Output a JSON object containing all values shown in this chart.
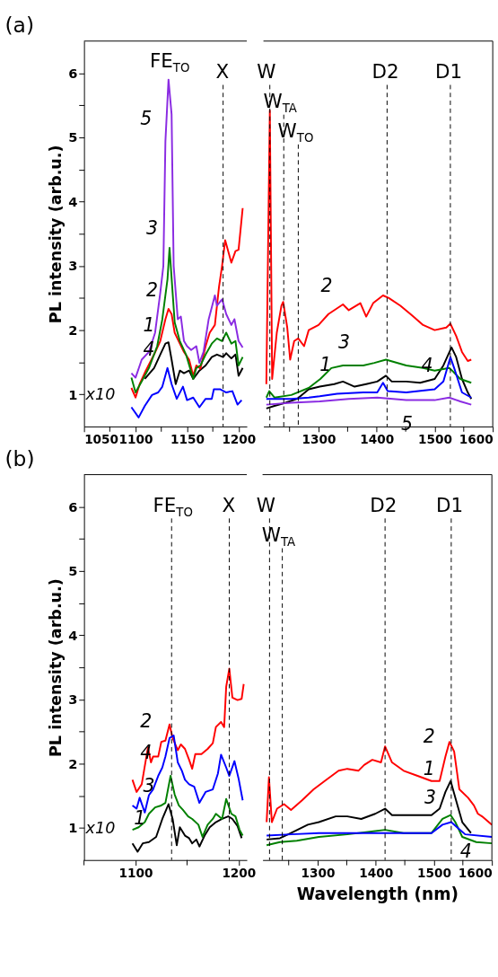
{
  "chart_data": [
    {
      "type": "line",
      "title": "(a)",
      "ylabel": "PL intensity (arb.u.)",
      "xlim": [
        1050,
        1208
      ],
      "ylim": [
        0.5,
        6.5
      ],
      "xticks": [
        1050,
        {
          "value": 1075,
          "label": null
        },
        1100,
        {
          "value": 1125,
          "label": null
        },
        1150,
        {
          "value": 1175,
          "label": null
        },
        1200
      ],
      "yticks": [
        1,
        {
          "value": 1.5,
          "label": null
        },
        2,
        {
          "value": 2.5,
          "label": null
        },
        3,
        {
          "value": 3.5,
          "label": null
        },
        4,
        {
          "value": 4.5,
          "label": null
        },
        5,
        {
          "value": 5.5,
          "label": null
        },
        6
      ],
      "series": [
        {
          "color": "#000000",
          "x": [
            1109,
            1118,
            1124,
            1129,
            1132,
            1135,
            1139,
            1143,
            1147,
            1152,
            1156,
            1162,
            1168,
            1174,
            1179,
            1185,
            1188,
            1193,
            1197,
            1200,
            1204
          ],
          "values": [
            1.24,
            1.41,
            1.62,
            1.79,
            1.81,
            1.54,
            1.16,
            1.37,
            1.33,
            1.37,
            1.24,
            1.37,
            1.45,
            1.58,
            1.62,
            1.58,
            1.64,
            1.56,
            1.62,
            1.29,
            1.41
          ]
        },
        {
          "color": "#ff0000",
          "x": [
            1096,
            1100,
            1104,
            1110,
            1118,
            1124,
            1129,
            1132,
            1135,
            1138,
            1143,
            1147,
            1152,
            1156,
            1159,
            1163,
            1168,
            1172,
            1177,
            1181,
            1184,
            1187,
            1193,
            1197,
            1200,
            1204
          ],
          "values": [
            1.1,
            0.95,
            1.16,
            1.37,
            1.62,
            1.83,
            2.17,
            2.33,
            2.25,
            1.96,
            1.79,
            1.66,
            1.54,
            1.29,
            1.45,
            1.4,
            1.75,
            1.96,
            2.08,
            2.67,
            3.0,
            3.4,
            3.05,
            3.23,
            3.25,
            3.9
          ]
        },
        {
          "color": "#008000",
          "x": [
            1096,
            1100,
            1106,
            1113,
            1121,
            1126,
            1131,
            1133,
            1136,
            1138,
            1143,
            1149,
            1156,
            1159,
            1163,
            1168,
            1174,
            1179,
            1184,
            1188,
            1193,
            1197,
            1200,
            1204
          ],
          "values": [
            1.26,
            1.03,
            1.2,
            1.41,
            1.75,
            2.17,
            2.79,
            3.28,
            2.58,
            2.12,
            1.83,
            1.62,
            1.24,
            1.41,
            1.45,
            1.62,
            1.79,
            1.87,
            1.83,
            1.96,
            1.79,
            1.83,
            1.45,
            1.58
          ]
        },
        {
          "color": "#0000ff",
          "x": [
            1096,
            1103,
            1109,
            1116,
            1122,
            1126,
            1131,
            1135,
            1140,
            1146,
            1150,
            1156,
            1162,
            1168,
            1174,
            1176,
            1182,
            1188,
            1194,
            1199,
            1203
          ],
          "values": [
            0.8,
            0.64,
            0.82,
            0.99,
            1.03,
            1.12,
            1.41,
            1.16,
            0.93,
            1.12,
            0.91,
            0.95,
            0.8,
            0.93,
            0.93,
            1.08,
            1.08,
            1.03,
            1.05,
            0.84,
            0.91
          ]
        },
        {
          "color": "#8a2be2",
          "x": [
            1096,
            1100,
            1106,
            1113,
            1119,
            1124,
            1127,
            1129,
            1132,
            1135,
            1137,
            1141,
            1144,
            1147,
            1150,
            1154,
            1159,
            1162,
            1166,
            1171,
            1177,
            1179,
            1184,
            1188,
            1193,
            1196,
            1200,
            1204
          ],
          "values": [
            1.33,
            1.26,
            1.54,
            1.66,
            1.96,
            2.58,
            3.0,
            4.94,
            5.9,
            5.36,
            3.0,
            2.17,
            2.21,
            1.83,
            1.75,
            1.69,
            1.75,
            1.49,
            1.66,
            2.17,
            2.54,
            2.38,
            2.48,
            2.25,
            2.08,
            2.17,
            1.83,
            1.73
          ]
        }
      ],
      "ref_lines": [
        {
          "axis": "x",
          "value": 1185,
          "label": "X",
          "line_style": "dashed"
        }
      ],
      "annotations": [
        {
          "text": "FE$_{TO}$",
          "x": 1132,
          "y": 5.9
        },
        {
          "text": "5",
          "x": 1126,
          "y": 5.0
        },
        {
          "text": "3",
          "x": 1132,
          "y": 3.3
        },
        {
          "text": "2",
          "x": 1132,
          "y": 2.33
        },
        {
          "text": "1",
          "x": 1129,
          "y": 1.79
        },
        {
          "text": "4",
          "x": 1129,
          "y": 1.41
        },
        "x10"
      ]
    },
    {
      "type": "line",
      "xlim": [
        1205,
        1600
      ],
      "ylim": [
        0.5,
        6.5
      ],
      "tick_labels": "x",
      "xticks": [
        {
          "value": 1250,
          "label": null
        },
        1300,
        {
          "value": 1350,
          "label": null
        },
        1400,
        {
          "value": 1450,
          "label": null
        },
        1500,
        {
          "value": 1550,
          "label": null
        },
        1600
      ],
      "series": [
        {
          "color": "#000000",
          "x": [
            1210,
            1224,
            1243,
            1263,
            1283,
            1302,
            1327,
            1342,
            1362,
            1382,
            1401,
            1416,
            1426,
            1451,
            1475,
            1500,
            1515,
            1529,
            1537,
            1547,
            1557,
            1563
          ],
          "values": [
            0.78,
            0.82,
            0.87,
            0.93,
            1.08,
            1.12,
            1.16,
            1.2,
            1.12,
            1.16,
            1.2,
            1.29,
            1.2,
            1.2,
            1.18,
            1.24,
            1.45,
            1.73,
            1.58,
            1.24,
            1.03,
            0.93
          ]
        },
        {
          "color": "#ff0000",
          "x": [
            1210,
            1216,
            1220,
            1228,
            1236,
            1239,
            1246,
            1251,
            1258,
            1265,
            1275,
            1283,
            1300,
            1317,
            1342,
            1352,
            1372,
            1382,
            1394,
            1411,
            1421,
            1441,
            1461,
            1480,
            1500,
            1520,
            1527,
            1537,
            1547,
            1557,
            1563
          ],
          "values": [
            1.16,
            5.42,
            1.24,
            1.96,
            2.38,
            2.44,
            2.04,
            1.54,
            1.83,
            1.87,
            1.75,
            2.0,
            2.08,
            2.25,
            2.4,
            2.31,
            2.42,
            2.21,
            2.42,
            2.54,
            2.5,
            2.38,
            2.23,
            2.08,
            2.0,
            2.04,
            2.1,
            1.91,
            1.66,
            1.52,
            1.54
          ]
        },
        {
          "color": "#008000",
          "x": [
            1210,
            1215,
            1224,
            1253,
            1283,
            1303,
            1322,
            1342,
            1377,
            1396,
            1416,
            1451,
            1480,
            1500,
            1525,
            1530,
            1544,
            1563
          ],
          "values": [
            0.95,
            1.05,
            0.95,
            0.99,
            1.1,
            1.24,
            1.41,
            1.45,
            1.45,
            1.49,
            1.54,
            1.45,
            1.41,
            1.37,
            1.41,
            1.37,
            1.24,
            1.18
          ]
        },
        {
          "color": "#0000ff",
          "x": [
            1210,
            1253,
            1283,
            1302,
            1332,
            1377,
            1401,
            1411,
            1419,
            1451,
            1500,
            1515,
            1527,
            1535,
            1547,
            1563
          ],
          "values": [
            0.93,
            0.93,
            0.95,
            0.97,
            1.01,
            1.03,
            1.03,
            1.18,
            1.05,
            1.03,
            1.08,
            1.2,
            1.58,
            1.37,
            1.03,
            0.95
          ]
        },
        {
          "color": "#8a2be2",
          "x": [
            1210,
            1253,
            1302,
            1352,
            1401,
            1451,
            1500,
            1525,
            1544,
            1563
          ],
          "values": [
            0.84,
            0.87,
            0.89,
            0.93,
            0.95,
            0.91,
            0.91,
            0.95,
            0.89,
            0.84
          ]
        }
      ],
      "ref_lines": [
        {
          "axis": "x",
          "value": 1216,
          "label": "W",
          "line_style": "dashed"
        },
        {
          "axis": "x",
          "value": 1240,
          "label": "W$_{TA}$",
          "line_style": "dashed"
        },
        {
          "axis": "x",
          "value": 1265,
          "label": "W$_{TO}$",
          "line_style": "dashed"
        },
        {
          "axis": "x",
          "value": 1418,
          "label": "D2",
          "line_style": "dashed"
        },
        {
          "axis": "x",
          "value": 1527,
          "label": "D1",
          "line_style": "dashed"
        }
      ],
      "annotations": [
        {
          "text": "2",
          "x": 1342,
          "y": 2.4
        },
        {
          "text": "3",
          "x": 1372,
          "y": 1.52
        },
        {
          "text": "1",
          "x": 1340,
          "y": 1.18
        },
        {
          "text": "5",
          "x": 1436,
          "y": 0.85
        },
        {
          "text": "4",
          "x": 1515,
          "y": 1.16
        }
      ]
    },
    {
      "type": "line",
      "title": "(b)",
      "ylabel": "PL intensity (arb.u.)",
      "xlim": [
        1050,
        1208
      ],
      "ylim": [
        0.5,
        6.5
      ],
      "xticks": [
        {
          "value": 1050,
          "label": null
        },
        1100,
        {
          "value": 1150,
          "label": null
        },
        1200
      ],
      "yticks": [
        1,
        {
          "value": 1.5,
          "label": null
        },
        2,
        {
          "value": 2.5,
          "label": null
        },
        3,
        {
          "value": 3.5,
          "label": null
        },
        4,
        {
          "value": 4.5,
          "label": null
        },
        5,
        {
          "value": 5.5,
          "label": null
        },
        6
      ],
      "series": [
        {
          "color": "#000000",
          "x": [
            1097,
            1102,
            1107,
            1113,
            1120,
            1126,
            1132,
            1136,
            1140,
            1143,
            1148,
            1152,
            1155,
            1159,
            1162,
            1167,
            1172,
            1178,
            1184,
            1190,
            1194,
            1199,
            1203
          ],
          "values": [
            0.76,
            0.63,
            0.76,
            0.78,
            0.86,
            1.14,
            1.37,
            1.14,
            0.73,
            1.01,
            0.88,
            0.84,
            0.76,
            0.82,
            0.71,
            0.88,
            1.01,
            1.09,
            1.14,
            1.18,
            1.14,
            1.03,
            0.84
          ]
        },
        {
          "color": "#ff0000",
          "x": [
            1097,
            1101,
            1106,
            1112,
            1115,
            1117,
            1122,
            1125,
            1129,
            1133,
            1136,
            1141,
            1144,
            1148,
            1152,
            1155,
            1158,
            1164,
            1170,
            1175,
            1178,
            1183,
            1186,
            1188,
            1191,
            1194,
            1199,
            1203,
            1205
          ],
          "values": [
            1.75,
            1.56,
            1.68,
            2.25,
            2.02,
            2.11,
            2.11,
            2.34,
            2.36,
            2.61,
            2.4,
            2.21,
            2.3,
            2.23,
            2.06,
            1.92,
            2.15,
            2.15,
            2.23,
            2.32,
            2.57,
            2.65,
            2.57,
            3.2,
            3.48,
            3.03,
            2.99,
            3.01,
            3.24
          ]
        },
        {
          "color": "#008000",
          "x": [
            1097,
            1103,
            1109,
            1113,
            1119,
            1125,
            1129,
            1134,
            1138,
            1142,
            1146,
            1151,
            1155,
            1161,
            1165,
            1170,
            1175,
            1178,
            1184,
            1188,
            1193,
            1197,
            1201,
            1204
          ],
          "values": [
            0.97,
            1.01,
            1.09,
            1.22,
            1.32,
            1.35,
            1.39,
            1.81,
            1.52,
            1.35,
            1.28,
            1.18,
            1.14,
            1.05,
            0.86,
            1.05,
            1.14,
            1.22,
            1.14,
            1.45,
            1.22,
            1.18,
            0.97,
            0.88
          ]
        },
        {
          "color": "#0000ff",
          "x": [
            1097,
            1101,
            1104,
            1109,
            1113,
            1117,
            1122,
            1126,
            1129,
            1133,
            1137,
            1141,
            1145,
            1148,
            1152,
            1157,
            1162,
            1168,
            1175,
            1180,
            1183,
            1188,
            1191,
            1196,
            1200,
            1204
          ],
          "values": [
            1.35,
            1.3,
            1.47,
            1.24,
            1.51,
            1.6,
            1.81,
            1.94,
            2.11,
            2.4,
            2.44,
            2.02,
            1.89,
            1.75,
            1.68,
            1.64,
            1.39,
            1.56,
            1.6,
            1.85,
            2.14,
            1.94,
            1.81,
            2.04,
            1.77,
            1.43
          ]
        }
      ],
      "ref_lines": [
        {
          "axis": "x",
          "value": 1135,
          "label": "FE$_{TO}$",
          "line_style": "dashed"
        },
        {
          "axis": "x",
          "value": 1191,
          "label": "X",
          "line_style": "dashed"
        }
      ],
      "annotations": [
        {
          "text": "2",
          "x": 1126,
          "y": 2.38
        },
        {
          "text": "4",
          "x": 1126,
          "y": 1.89
        },
        {
          "text": "3",
          "x": 1129,
          "y": 1.37
        },
        {
          "text": "1",
          "x": 1120,
          "y": 0.86
        },
        "x10"
      ]
    },
    {
      "type": "line",
      "xlabel": "Wavelength (nm)",
      "xlim": [
        1205,
        1600
      ],
      "ylim": [
        0.5,
        6.5
      ],
      "tick_labels": "x",
      "xticks": [
        {
          "value": 1250,
          "label": null
        },
        1300,
        {
          "value": 1350,
          "label": null
        },
        1400,
        {
          "value": 1450,
          "label": null
        },
        1500,
        {
          "value": 1550,
          "label": null
        },
        1600
      ],
      "series": [
        {
          "color": "#000000",
          "x": [
            1212,
            1235,
            1254,
            1283,
            1302,
            1331,
            1351,
            1375,
            1399,
            1416,
            1428,
            1448,
            1472,
            1496,
            1510,
            1520,
            1529,
            1537,
            1549,
            1564
          ],
          "values": [
            0.82,
            0.84,
            0.92,
            1.05,
            1.09,
            1.18,
            1.18,
            1.14,
            1.22,
            1.3,
            1.2,
            1.2,
            1.2,
            1.2,
            1.3,
            1.56,
            1.73,
            1.47,
            1.09,
            0.92
          ]
        },
        {
          "color": "#ff0000",
          "x": [
            1212,
            1216,
            1221,
            1230,
            1242,
            1254,
            1273,
            1293,
            1312,
            1336,
            1351,
            1370,
            1380,
            1394,
            1409,
            1416,
            1428,
            1448,
            1472,
            1496,
            1510,
            1520,
            1527,
            1535,
            1544,
            1559,
            1569,
            1576,
            1583,
            1600
          ],
          "values": [
            1.09,
            1.79,
            1.09,
            1.3,
            1.37,
            1.28,
            1.43,
            1.6,
            1.73,
            1.89,
            1.92,
            1.89,
            1.98,
            2.06,
            2.02,
            2.27,
            2.02,
            1.89,
            1.81,
            1.73,
            1.73,
            2.11,
            2.34,
            2.19,
            1.6,
            1.47,
            1.35,
            1.22,
            1.18,
            1.05
          ]
        },
        {
          "color": "#008000",
          "x": [
            1212,
            1235,
            1264,
            1302,
            1351,
            1399,
            1416,
            1448,
            1496,
            1515,
            1529,
            1537,
            1549,
            1573,
            1600
          ],
          "values": [
            0.73,
            0.78,
            0.8,
            0.86,
            0.9,
            0.95,
            0.97,
            0.92,
            0.92,
            1.14,
            1.2,
            1.09,
            0.86,
            0.78,
            0.76
          ]
        },
        {
          "color": "#0000ff",
          "x": [
            1212,
            1254,
            1302,
            1351,
            1399,
            1448,
            1496,
            1515,
            1530,
            1540,
            1554,
            1600
          ],
          "values": [
            0.88,
            0.9,
            0.92,
            0.92,
            0.92,
            0.92,
            0.92,
            1.05,
            1.09,
            1.01,
            0.9,
            0.86
          ]
        }
      ],
      "ref_lines": [
        {
          "axis": "x",
          "value": 1217,
          "label": "W",
          "line_style": "dashed"
        },
        {
          "axis": "x",
          "value": 1239,
          "label": "W$_{TA}$",
          "line_style": "dashed"
        },
        {
          "axis": "x",
          "value": 1416,
          "label": "D2",
          "line_style": "dashed"
        },
        {
          "axis": "x",
          "value": 1530,
          "label": "D1",
          "line_style": "dashed"
        }
      ],
      "annotations": [
        {
          "text": "2",
          "x": 1520,
          "y": 2.13
        },
        {
          "text": "1",
          "x": 1520,
          "y": 1.64
        },
        {
          "text": "3",
          "x": 1522,
          "y": 1.18
        },
        {
          "text": "4",
          "x": 1530,
          "y": 1.09
        }
      ]
    }
  ]
}
